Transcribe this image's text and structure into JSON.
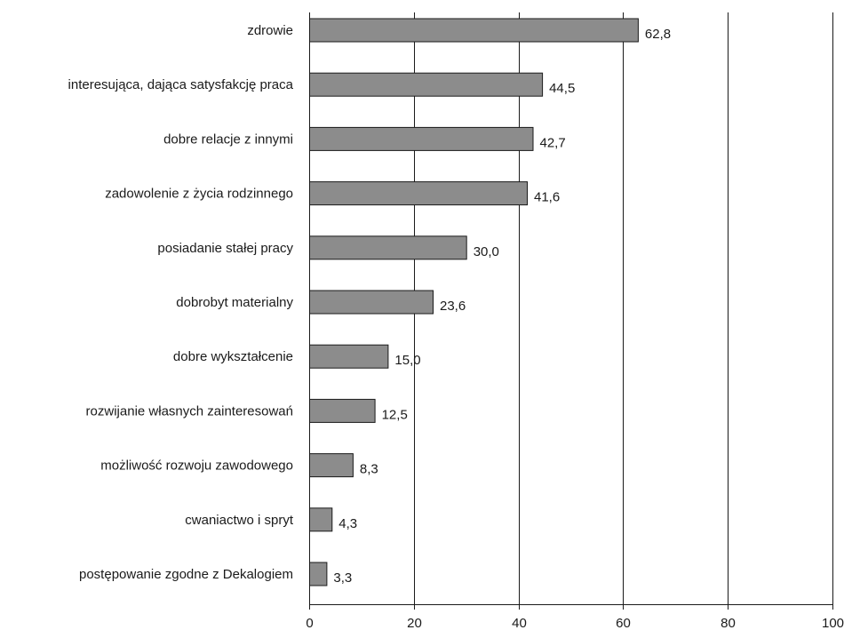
{
  "chart_data": {
    "type": "bar",
    "orientation": "horizontal",
    "categories": [
      "zdrowie",
      "interesująca, dająca satysfakcję praca",
      "dobre relacje z innymi",
      "zadowolenie z życia rodzinnego",
      "posiadanie stałej pracy",
      "dobrobyt materialny",
      "dobre wykształcenie",
      "rozwijanie własnych zainteresowań",
      "możliwość rozwoju zawodowego",
      "cwaniactwo i spryt",
      "postępowanie zgodne z Dekalogiem"
    ],
    "values": [
      62.8,
      44.5,
      42.7,
      41.6,
      30.0,
      23.6,
      15.0,
      12.5,
      8.3,
      4.3,
      3.3
    ],
    "value_labels": [
      "62,8",
      "44,5",
      "42,7",
      "41,6",
      "30,0",
      "23,6",
      "15,0",
      "12,5",
      "8,3",
      "4,3",
      "3,3"
    ],
    "x_ticks": [
      0,
      20,
      40,
      60,
      80,
      100
    ],
    "x_tick_labels": [
      "0",
      "20",
      "40",
      "60",
      "80",
      "100"
    ],
    "xlim": [
      0,
      100
    ],
    "grid": true,
    "title": "",
    "xlabel": "",
    "ylabel": "",
    "colors": {
      "bar": "#8c8c8c",
      "edge": "#1a1a1a"
    }
  }
}
